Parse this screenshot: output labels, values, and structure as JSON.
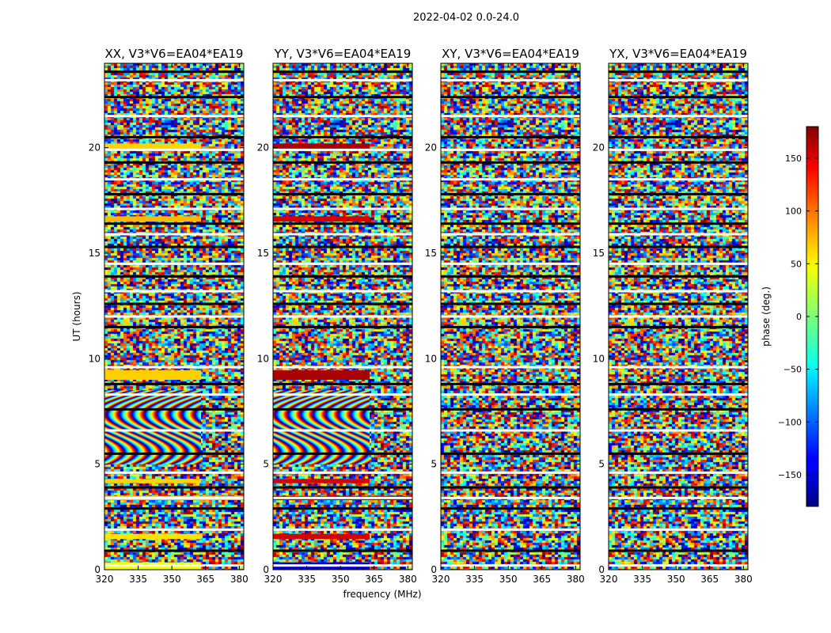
{
  "chart_data": {
    "type": "heatmap",
    "suptitle": "2022-04-02 0.0-24.0",
    "panels": [
      {
        "title": "XX, V3*V6=EA04*EA19",
        "key": "XX"
      },
      {
        "title": "YY, V3*V6=EA04*EA19",
        "key": "YY"
      },
      {
        "title": "XY, V3*V6=EA04*EA19",
        "key": "XY"
      },
      {
        "title": "YX, V3*V6=EA04*EA19",
        "key": "YX"
      }
    ],
    "xlabel": "frequency (MHz)",
    "ylabel": "UT (hours)",
    "xlim": [
      320,
      382
    ],
    "ylim": [
      0,
      24
    ],
    "xticks": [
      320,
      335,
      350,
      365,
      380
    ],
    "xtick_labels": [
      "320",
      "335",
      "350",
      "365",
      "380"
    ],
    "yticks": [
      0,
      5,
      10,
      15,
      20
    ],
    "ytick_labels": [
      "0",
      "5",
      "10",
      "15",
      "20"
    ],
    "colorbar": {
      "label": "phase (deg.)",
      "range": [
        -180,
        180
      ],
      "ticks": [
        150,
        100,
        50,
        0,
        -50,
        -100,
        -150
      ],
      "tick_labels": [
        "150",
        "100",
        "50",
        "0",
        "−50",
        "−100",
        "−150"
      ],
      "colormap": "jet"
    },
    "flagged_gaps_hours": [
      0.2,
      0.9,
      1.9,
      2.9,
      3.4,
      3.9,
      4.6,
      5.5,
      6.6,
      7.6,
      8.3,
      8.8,
      9.6,
      11.5,
      12.0,
      12.6,
      13.2,
      13.9,
      14.5,
      15.3,
      15.9,
      16.4,
      17.1,
      17.8,
      18.5,
      19.3,
      19.9,
      20.5,
      21.5,
      22.4,
      23.2,
      23.6
    ],
    "coherent_bands": [
      {
        "panels": [
          "XX"
        ],
        "t0": 0.0,
        "t1": 0.35,
        "f1": 363,
        "phase": 40
      },
      {
        "panels": [
          "YY"
        ],
        "t0": 0.0,
        "t1": 0.35,
        "f1": 363,
        "phase": -155
      },
      {
        "panels": [
          "XX"
        ],
        "t0": 1.45,
        "t1": 1.7,
        "f1": 363,
        "phase": 55
      },
      {
        "panels": [
          "YY"
        ],
        "t0": 1.45,
        "t1": 1.7,
        "f1": 363,
        "phase": 150
      },
      {
        "panels": [
          "XX"
        ],
        "t0": 3.3,
        "t1": 3.5,
        "f1": 382,
        "phase": 65
      },
      {
        "panels": [
          "YY"
        ],
        "t0": 3.3,
        "t1": 3.5,
        "f1": 382,
        "phase": 160
      },
      {
        "panels": [
          "XX"
        ],
        "t0": 4.1,
        "t1": 4.3,
        "f1": 363,
        "phase": 60
      },
      {
        "panels": [
          "YY"
        ],
        "t0": 4.1,
        "t1": 4.3,
        "f1": 363,
        "phase": 150
      },
      {
        "panels": [
          "XX"
        ],
        "t0": 9.0,
        "t1": 9.45,
        "f1": 363,
        "phase": 62
      },
      {
        "panels": [
          "YY"
        ],
        "t0": 9.0,
        "t1": 9.45,
        "f1": 363,
        "phase": 165
      },
      {
        "panels": [
          "XX"
        ],
        "t0": 16.5,
        "t1": 16.75,
        "f1": 363,
        "phase": 70
      },
      {
        "panels": [
          "YY"
        ],
        "t0": 16.5,
        "t1": 16.75,
        "f1": 363,
        "phase": 150
      },
      {
        "panels": [
          "XX"
        ],
        "t0": 19.95,
        "t1": 20.2,
        "f1": 363,
        "phase": 60
      },
      {
        "panels": [
          "YY"
        ],
        "t0": 19.95,
        "t1": 20.2,
        "f1": 363,
        "phase": 165
      }
    ],
    "fringe_bands": [
      {
        "panels": [
          "XX",
          "YY"
        ],
        "t0": 5.0,
        "t1": 8.5,
        "f1": 363
      }
    ]
  }
}
